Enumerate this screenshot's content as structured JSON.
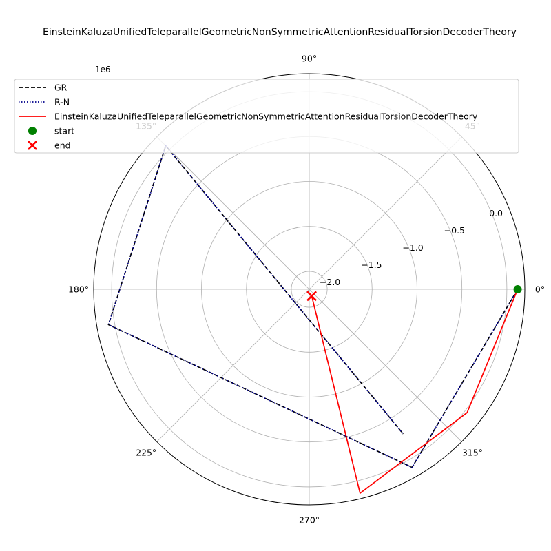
{
  "chart_data": {
    "type": "line",
    "projection": "polar",
    "title": "EinsteinKaluzaUnifiedTeleparallelGeometricNonSymmetricAttentionResidualTorsionDecoderTheory",
    "radial_offset_label": "1e6",
    "radial_range": [
      -2.2,
      0.2
    ],
    "radial_ticks": [
      -2.0,
      -1.5,
      -1.0,
      -0.5,
      0.0
    ],
    "radial_tick_labels": [
      "−2.0",
      "−1.5",
      "−1.0",
      "−0.5",
      "0.0"
    ],
    "angle_ticks_deg": [
      0,
      45,
      90,
      135,
      180,
      225,
      270,
      315
    ],
    "angle_tick_labels": [
      "0°",
      "45°",
      "90°",
      "135°",
      "180°",
      "225°",
      "270°",
      "315°"
    ],
    "grid": true,
    "legend_placement": "upper-left",
    "series": [
      {
        "name": "GR",
        "color": "#000000",
        "style": "dashed",
        "theta_deg": [
          0,
          300,
          190,
          135,
          303
        ],
        "r": [
          0.12,
          0.09,
          0.07,
          0.06,
          -0.28
        ]
      },
      {
        "name": "R-N",
        "color": "#00008b",
        "style": "dotted",
        "theta_deg": [
          0,
          300,
          190,
          135,
          303
        ],
        "r": [
          0.12,
          0.09,
          0.07,
          0.06,
          -0.28
        ]
      },
      {
        "name": "EinsteinKaluzaUnifiedTeleparallelGeometricNonSymmetricAttentionResidualTorsionDecoderTheory",
        "color": "#ff0000",
        "style": "solid",
        "theta_deg": [
          0,
          322,
          284,
          290
        ],
        "r": [
          0.12,
          0.03,
          0.14,
          -2.12
        ]
      }
    ],
    "markers": [
      {
        "name": "start",
        "color": "#008000",
        "shape": "circle",
        "theta_deg": 0,
        "r": 0.12
      },
      {
        "name": "end",
        "color": "#ff0000",
        "shape": "x",
        "theta_deg": 290,
        "r": -2.12
      }
    ]
  }
}
